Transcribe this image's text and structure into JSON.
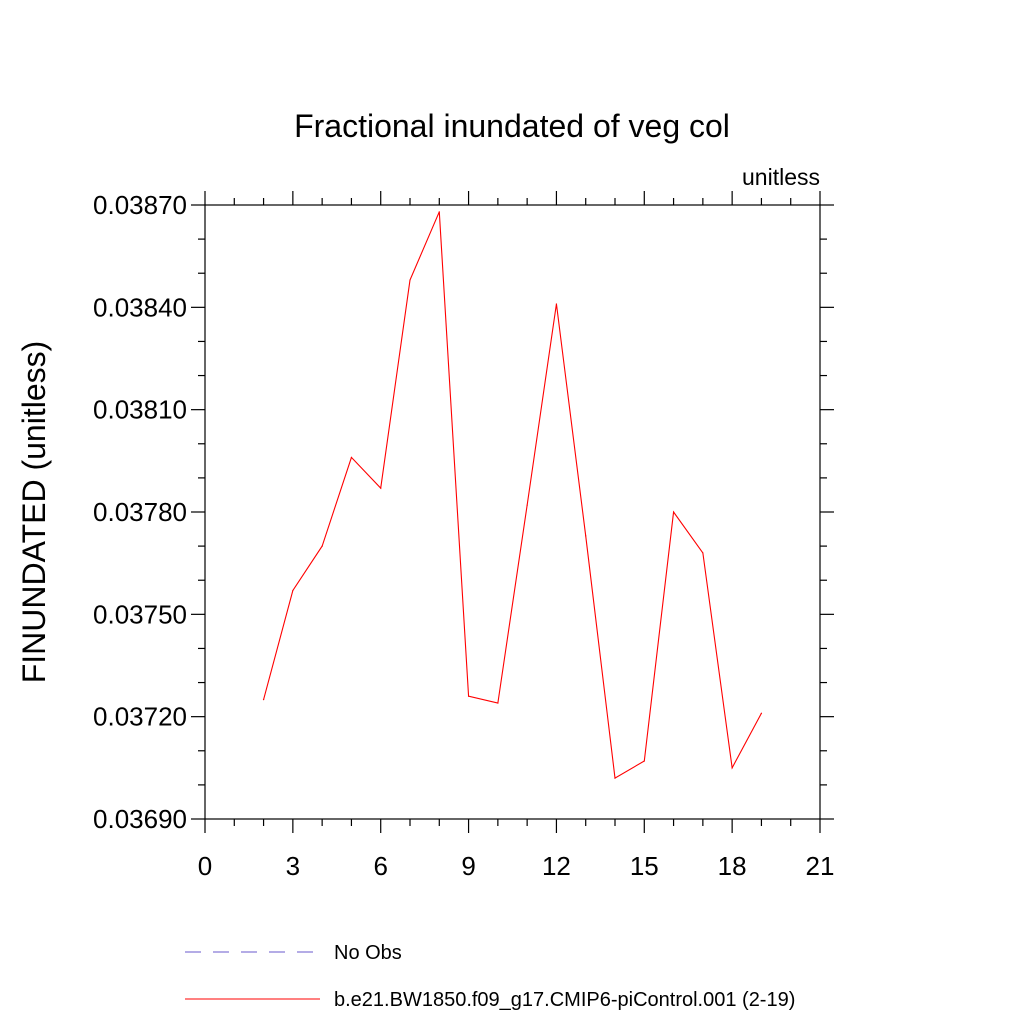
{
  "chart_data": {
    "type": "line",
    "title": "Fractional inundated of veg col",
    "units_label": "unitless",
    "ylabel": "FINUNDATED  (unitless)",
    "xlabel": "",
    "xlim": [
      0,
      21
    ],
    "ylim": [
      0.0369,
      0.0387
    ],
    "x_ticks": [
      "0",
      "3",
      "6",
      "9",
      "12",
      "15",
      "18",
      "21"
    ],
    "y_ticks": [
      "0.03690",
      "0.03720",
      "0.03750",
      "0.03780",
      "0.03810",
      "0.03840",
      "0.03870"
    ],
    "x": [
      2,
      3,
      4,
      5,
      6,
      7,
      8,
      9,
      10,
      11,
      12,
      13,
      14,
      15,
      16,
      17,
      18,
      19
    ],
    "series": [
      {
        "name": "b.e21.BW1850.f09_g17.CMIP6-piControl.001 (2-19)",
        "color": "#ff0000",
        "dash": "solid",
        "values": [
          0.03725,
          0.03757,
          0.0377,
          0.03796,
          0.03787,
          0.03848,
          0.03868,
          0.03726,
          0.03724,
          0.03782,
          0.03841,
          0.03773,
          0.03702,
          0.03707,
          0.0378,
          0.03768,
          0.03705,
          0.03721
        ]
      }
    ],
    "legend": [
      {
        "label": "No Obs",
        "color": "#6a5acd",
        "dash": "dashed"
      },
      {
        "label": "b.e21.BW1850.f09_g17.CMIP6-piControl.001 (2-19)",
        "color": "#ff0000",
        "dash": "solid"
      }
    ],
    "legend_placement": "bottom",
    "grid": false
  }
}
